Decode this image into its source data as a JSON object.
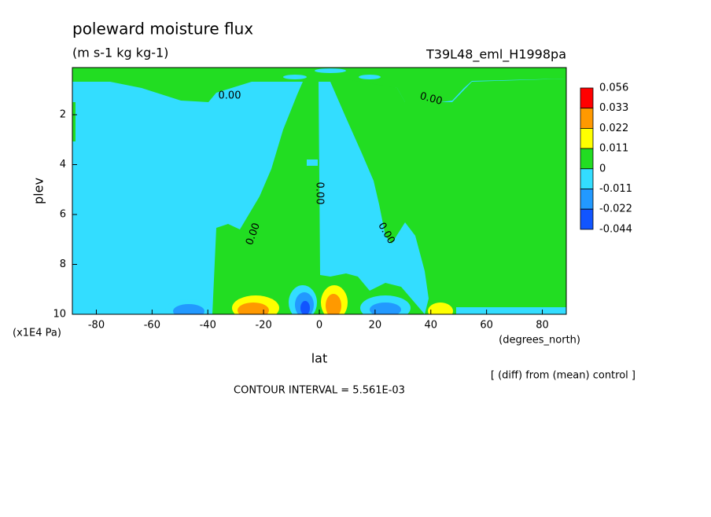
{
  "chart_data": {
    "type": "contour",
    "title": "poleward moisture flux",
    "units": "(m s-1 kg kg-1)",
    "dataset": "T39L48_eml_H1998pa",
    "note": "[ (diff) from (mean) control ]",
    "contour_interval": "CONTOUR INTERVAL = 5.561E-03",
    "xlabel": "lat",
    "xunits": "(degrees_north)",
    "ylabel": "plev",
    "yunits": "(x1E4 Pa)",
    "xlim": [
      -88.6,
      88.6
    ],
    "xticks": [
      -80,
      -60,
      -40,
      -20,
      0,
      20,
      40,
      60,
      80
    ],
    "ylim": [
      0.11,
      10
    ],
    "yticks": [
      2,
      4,
      6,
      8,
      10
    ],
    "y_reversed": true,
    "contour_labels": [
      "0.00",
      "0.00",
      "0.00",
      "0.00",
      "0.00"
    ],
    "colorbar": {
      "levels": [
        0.056,
        0.033,
        0.022,
        0.011,
        0,
        -0.011,
        -0.022,
        -0.044
      ],
      "colors": [
        "#ff0000",
        "#ff9900",
        "#ffff00",
        "#22dd22",
        "#33ddff",
        "#2299ff",
        "#1155ff"
      ]
    }
  }
}
